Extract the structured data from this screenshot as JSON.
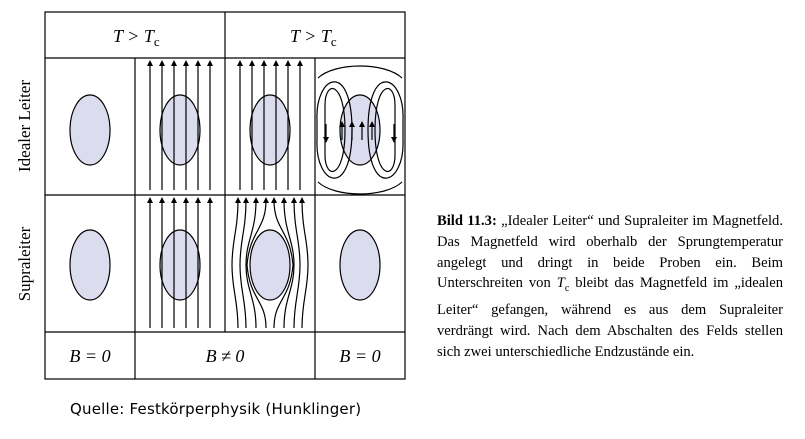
{
  "header": {
    "col_left": "T > T",
    "col_left_sub": "c",
    "col_right": "T > T",
    "col_right_sub": "c"
  },
  "rows": {
    "row_top": "Idealer Leiter",
    "row_bottom": "Supraleiter"
  },
  "footer": {
    "left": "B = 0",
    "middle": "B ≠ 0",
    "right": "B = 0"
  },
  "caption": {
    "label": "Bild 11.3:",
    "text_a": " „Idealer Leiter“ und Supraleiter im Magnetfeld. Das Magnetfeld wird oberhalb der Sprungtemperatur angelegt und dringt in beide Proben ein. Beim Unterschreiten von ",
    "tc_var": "T",
    "tc_sub": "c",
    "text_b": " bleibt das Magnetfeld im „idealen Leiter“ gefangen, während es aus dem Supraleiter verdrängt wird. Nach dem Abschalten des Felds stellen sich zwei unterschiedliche Endzustände ein."
  },
  "source": "Quelle: Festkörperphysik (Hunklinger)",
  "colors": {
    "sample_fill": "#dcdcef",
    "line": "#000000"
  }
}
